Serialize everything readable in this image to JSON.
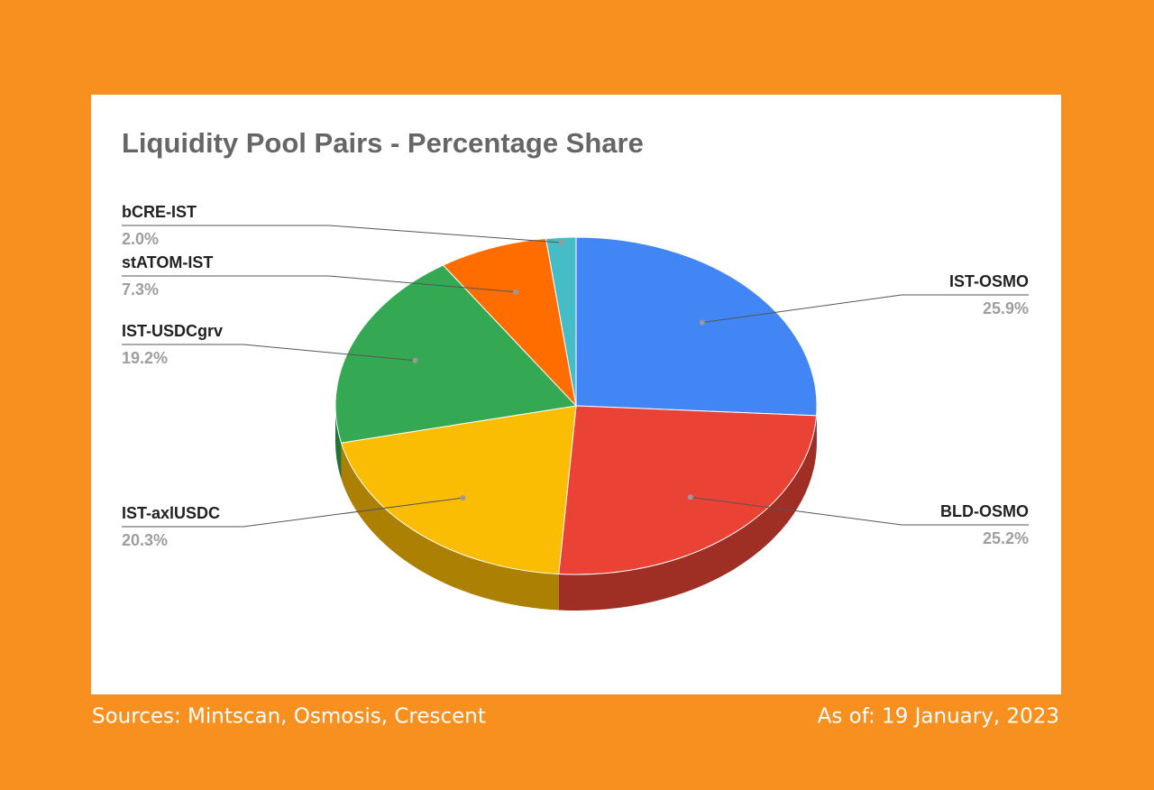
{
  "chart_data": {
    "type": "pie",
    "title": "Liquidity Pool Pairs - Percentage Share",
    "categories": [
      "IST-OSMO",
      "BLD-OSMO",
      "IST-axlUSDC",
      "IST-USDCgrv",
      "stATOM-IST",
      "bCRE-IST"
    ],
    "values": [
      25.9,
      25.2,
      20.3,
      19.2,
      7.3,
      2.0
    ],
    "value_labels": [
      "25.9%",
      "25.2%",
      "20.3%",
      "19.2%",
      "7.3%",
      "2.0%"
    ],
    "colors": [
      "#4285f4",
      "#ea4335",
      "#fbbc04",
      "#34a853",
      "#ff6d01",
      "#46bdc6"
    ],
    "source": "Sources: Mintscan, Osmosis, Crescent",
    "date_note": "As of: 19 January, 2023"
  }
}
